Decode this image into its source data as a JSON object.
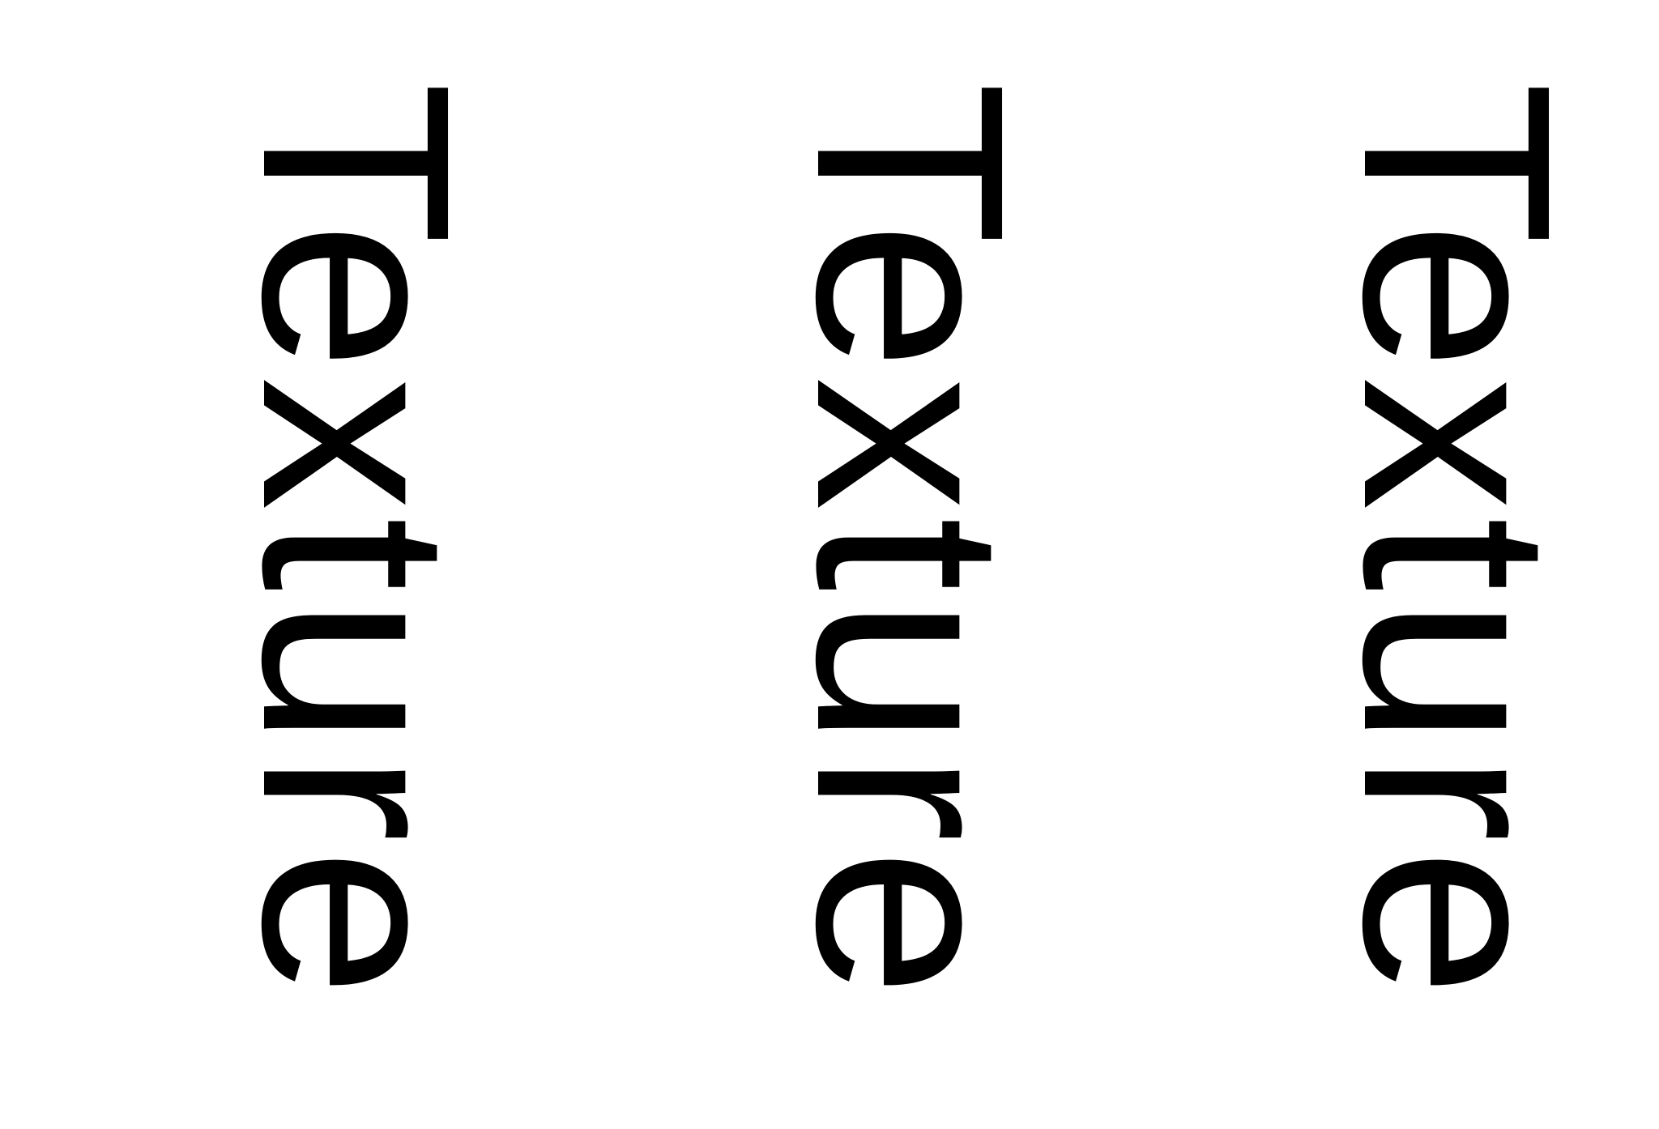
{
  "labels": [
    {
      "text": "Texture"
    },
    {
      "text": "Texture"
    },
    {
      "text": "Texture"
    }
  ],
  "colors": {
    "text": "#000000",
    "background": "#ffffff"
  }
}
